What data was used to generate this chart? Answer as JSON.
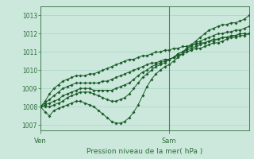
{
  "title": "",
  "xlabel": "Pression niveau de la mer( hPa )",
  "bg_color": "#cce8dc",
  "line_color": "#1a5c2a",
  "grid_color": "#a8d4c4",
  "axis_color": "#2d6e3a",
  "tick_color": "#2d6e3a",
  "ylim": [
    1006.7,
    1013.5
  ],
  "yticks": [
    1007,
    1008,
    1009,
    1010,
    1011,
    1012,
    1013
  ],
  "xtick_labels": [
    "Ven",
    "Sam"
  ],
  "xtick_pos": [
    0.0,
    0.615
  ],
  "vline_x": 0.615,
  "n_points": 48,
  "series": [
    [
      1008.0,
      1007.7,
      1007.5,
      1007.8,
      1007.9,
      1008.0,
      1008.1,
      1008.2,
      1008.3,
      1008.3,
      1008.2,
      1008.1,
      1008.0,
      1007.8,
      1007.6,
      1007.4,
      1007.2,
      1007.1,
      1007.1,
      1007.2,
      1007.4,
      1007.7,
      1008.1,
      1008.6,
      1009.1,
      1009.5,
      1009.8,
      1010.0,
      1010.2,
      1010.3,
      1010.5,
      1010.7,
      1010.9,
      1011.2,
      1011.4,
      1011.6,
      1011.8,
      1012.0,
      1012.2,
      1012.3,
      1012.4,
      1012.5,
      1012.5,
      1012.6,
      1012.6,
      1012.7,
      1012.8,
      1013.0
    ],
    [
      1008.0,
      1008.0,
      1008.0,
      1008.1,
      1008.2,
      1008.3,
      1008.5,
      1008.6,
      1008.7,
      1008.8,
      1008.8,
      1008.8,
      1008.7,
      1008.6,
      1008.5,
      1008.4,
      1008.3,
      1008.3,
      1008.4,
      1008.5,
      1008.7,
      1009.0,
      1009.3,
      1009.6,
      1009.8,
      1010.0,
      1010.2,
      1010.3,
      1010.4,
      1010.6,
      1010.7,
      1010.9,
      1011.0,
      1011.2,
      1011.3,
      1011.5,
      1011.6,
      1011.7,
      1011.8,
      1011.9,
      1012.0,
      1012.0,
      1012.1,
      1012.1,
      1012.2,
      1012.2,
      1012.3,
      1012.4
    ],
    [
      1008.0,
      1008.1,
      1008.2,
      1008.3,
      1008.4,
      1008.6,
      1008.7,
      1008.8,
      1008.9,
      1009.0,
      1009.0,
      1009.0,
      1008.9,
      1008.9,
      1008.9,
      1008.9,
      1008.9,
      1009.0,
      1009.1,
      1009.2,
      1009.3,
      1009.5,
      1009.7,
      1009.9,
      1010.0,
      1010.2,
      1010.3,
      1010.4,
      1010.5,
      1010.6,
      1010.7,
      1010.9,
      1011.0,
      1011.1,
      1011.2,
      1011.3,
      1011.4,
      1011.5,
      1011.6,
      1011.6,
      1011.7,
      1011.8,
      1011.8,
      1011.9,
      1011.9,
      1012.0,
      1012.0,
      1012.0
    ],
    [
      1008.0,
      1008.2,
      1008.4,
      1008.6,
      1008.8,
      1009.0,
      1009.1,
      1009.2,
      1009.3,
      1009.3,
      1009.3,
      1009.3,
      1009.3,
      1009.3,
      1009.4,
      1009.4,
      1009.5,
      1009.6,
      1009.7,
      1009.8,
      1009.9,
      1010.0,
      1010.1,
      1010.2,
      1010.3,
      1010.4,
      1010.4,
      1010.5,
      1010.6,
      1010.6,
      1010.7,
      1010.8,
      1010.9,
      1011.0,
      1011.1,
      1011.2,
      1011.2,
      1011.3,
      1011.4,
      1011.5,
      1011.5,
      1011.6,
      1011.7,
      1011.8,
      1011.8,
      1011.9,
      1011.9,
      1012.0
    ],
    [
      1008.0,
      1008.3,
      1008.7,
      1009.0,
      1009.2,
      1009.4,
      1009.5,
      1009.6,
      1009.7,
      1009.7,
      1009.7,
      1009.8,
      1009.8,
      1009.9,
      1010.0,
      1010.1,
      1010.2,
      1010.3,
      1010.4,
      1010.5,
      1010.6,
      1010.6,
      1010.7,
      1010.8,
      1010.8,
      1010.9,
      1011.0,
      1011.0,
      1011.1,
      1011.1,
      1011.2,
      1011.2,
      1011.3,
      1011.3,
      1011.4,
      1011.4,
      1011.5,
      1011.5,
      1011.6,
      1011.7,
      1011.7,
      1011.8,
      1011.8,
      1011.9,
      1011.9,
      1012.0,
      1012.0,
      1012.0
    ]
  ]
}
